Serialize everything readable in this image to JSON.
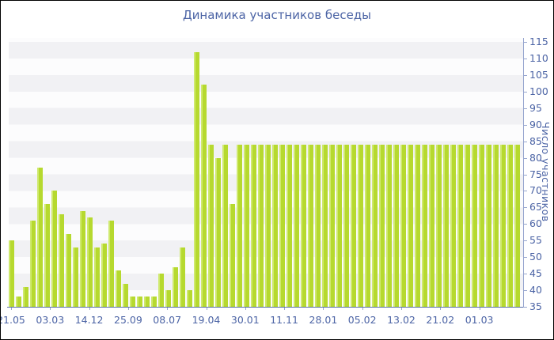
{
  "title": "Динамика участников беседы",
  "chart_data": {
    "type": "bar",
    "title": "Динамика участников беседы",
    "xlabel": "",
    "ylabel": "Число участников",
    "ylim": [
      35,
      115
    ],
    "ytick_step": 5,
    "grid": "alternating horizontal bands of 5 units",
    "legend_position": "none",
    "x_tick_labels": [
      "21.05",
      "03.03",
      "14.12",
      "25.09",
      "08.07",
      "19.04",
      "30.01",
      "11.11",
      "28.01",
      "05.02",
      "13.02",
      "21.02",
      "01.03"
    ],
    "values": [
      55,
      38,
      41,
      61,
      77,
      66,
      70,
      63,
      57,
      53,
      64,
      62,
      53,
      54,
      61,
      46,
      42,
      38,
      38,
      38,
      38,
      45,
      40,
      47,
      53,
      40,
      112,
      102,
      84,
      80,
      84,
      66,
      84,
      84,
      84,
      84,
      84,
      84,
      84,
      84,
      84,
      84,
      84,
      84,
      84,
      84,
      84,
      84,
      84,
      84,
      84,
      84,
      84,
      84,
      84,
      84,
      84,
      84,
      84,
      84,
      84,
      84,
      84,
      84,
      84,
      84,
      84,
      84,
      84,
      84,
      84,
      84
    ]
  },
  "colors": {
    "bar_main": "#b6d92f",
    "bar_highlight": "#cfe96e",
    "stripe_light": "#fcfcfd",
    "stripe_gray": "#f1f1f4",
    "text_blue": "#4c64a5",
    "axis_line": "#5a71a8",
    "tick_line": "#97a6cf",
    "frame": "#000000"
  }
}
